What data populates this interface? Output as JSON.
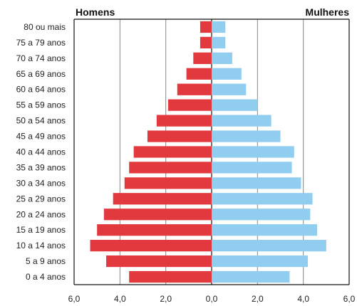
{
  "chart_data": {
    "type": "bar",
    "orientation": "horizontal-population-pyramid",
    "left_title": "Homens",
    "right_title": "Mulheres",
    "categories": [
      "0 a 4 anos",
      "5 a 9 anos",
      "10 a 14 anos",
      "15 a 19 anos",
      "20 a 24 anos",
      "25 a 29 anos",
      "30 a 34 anos",
      "35 a 39 anos",
      "40 a 44 anos",
      "45 a 49 anos",
      "50 a 54 anos",
      "55 a 59 anos",
      "60 a 64 anos",
      "65 a 69 anos",
      "70 a 74 anos",
      "75 a 79 anos",
      "80 ou mais"
    ],
    "series": [
      {
        "name": "Homens",
        "color": "#e2393f",
        "values": [
          3.6,
          4.6,
          5.3,
          5.0,
          4.7,
          4.3,
          3.8,
          3.6,
          3.4,
          2.8,
          2.4,
          1.9,
          1.5,
          1.1,
          0.8,
          0.5,
          0.5
        ]
      },
      {
        "name": "Mulheres",
        "color": "#90cdee",
        "values": [
          3.4,
          4.2,
          5.0,
          4.6,
          4.3,
          4.4,
          3.9,
          3.5,
          3.6,
          3.0,
          2.6,
          2.0,
          1.5,
          1.3,
          0.9,
          0.6,
          0.6
        ]
      }
    ],
    "x_ticks": [
      "6,0",
      "4,0",
      "2,0",
      "0,0",
      "2,0",
      "4,0",
      "6,0"
    ],
    "xlim": [
      -6,
      6
    ],
    "grid": true,
    "colors": {
      "grid": "#888888",
      "axis": "#111111"
    }
  }
}
